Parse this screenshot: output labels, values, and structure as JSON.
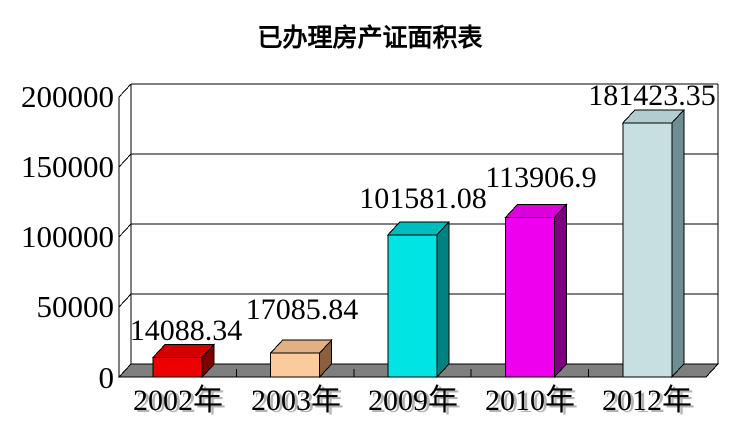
{
  "chart_data": {
    "type": "bar",
    "style": "3d-column",
    "title": "已办理房产证面积表",
    "categories": [
      "2002年",
      "2003年",
      "2009年",
      "2010年",
      "2012年"
    ],
    "values": [
      14088.34,
      17085.84,
      101581.08,
      113906.9,
      181423.35
    ],
    "value_labels": [
      "14088.34",
      "17085.84",
      "101581.08",
      "113906.9",
      "181423.35"
    ],
    "y_tick_labels_top_down": [
      "200000",
      "150000",
      "100000",
      "50000",
      "0"
    ],
    "xlabel": "",
    "ylabel": "",
    "ylim": [
      0,
      200000
    ],
    "y_step": 50000,
    "grid": true,
    "legend_position": "none",
    "background_color": "#FFFFFF",
    "axis_color": "#000000",
    "floor_color": "#7F7F7F",
    "label_shadow_color": "#B3B3B3",
    "bar_colors": [
      {
        "name": "red",
        "front": "#EE0000",
        "top": "#D40000",
        "side": "#7F0000"
      },
      {
        "name": "peach",
        "front": "#FBCB9B",
        "top": "#E0B184",
        "side": "#8A5F3E"
      },
      {
        "name": "cyan",
        "front": "#00E4E4",
        "top": "#00BDBD",
        "side": "#008282"
      },
      {
        "name": "magenta",
        "front": "#EE00EE",
        "top": "#DC00DC",
        "side": "#7F007F"
      },
      {
        "name": "pale-blue",
        "front": "#C7DFE1",
        "top": "#B3CCD0",
        "side": "#6E8E94"
      }
    ]
  }
}
